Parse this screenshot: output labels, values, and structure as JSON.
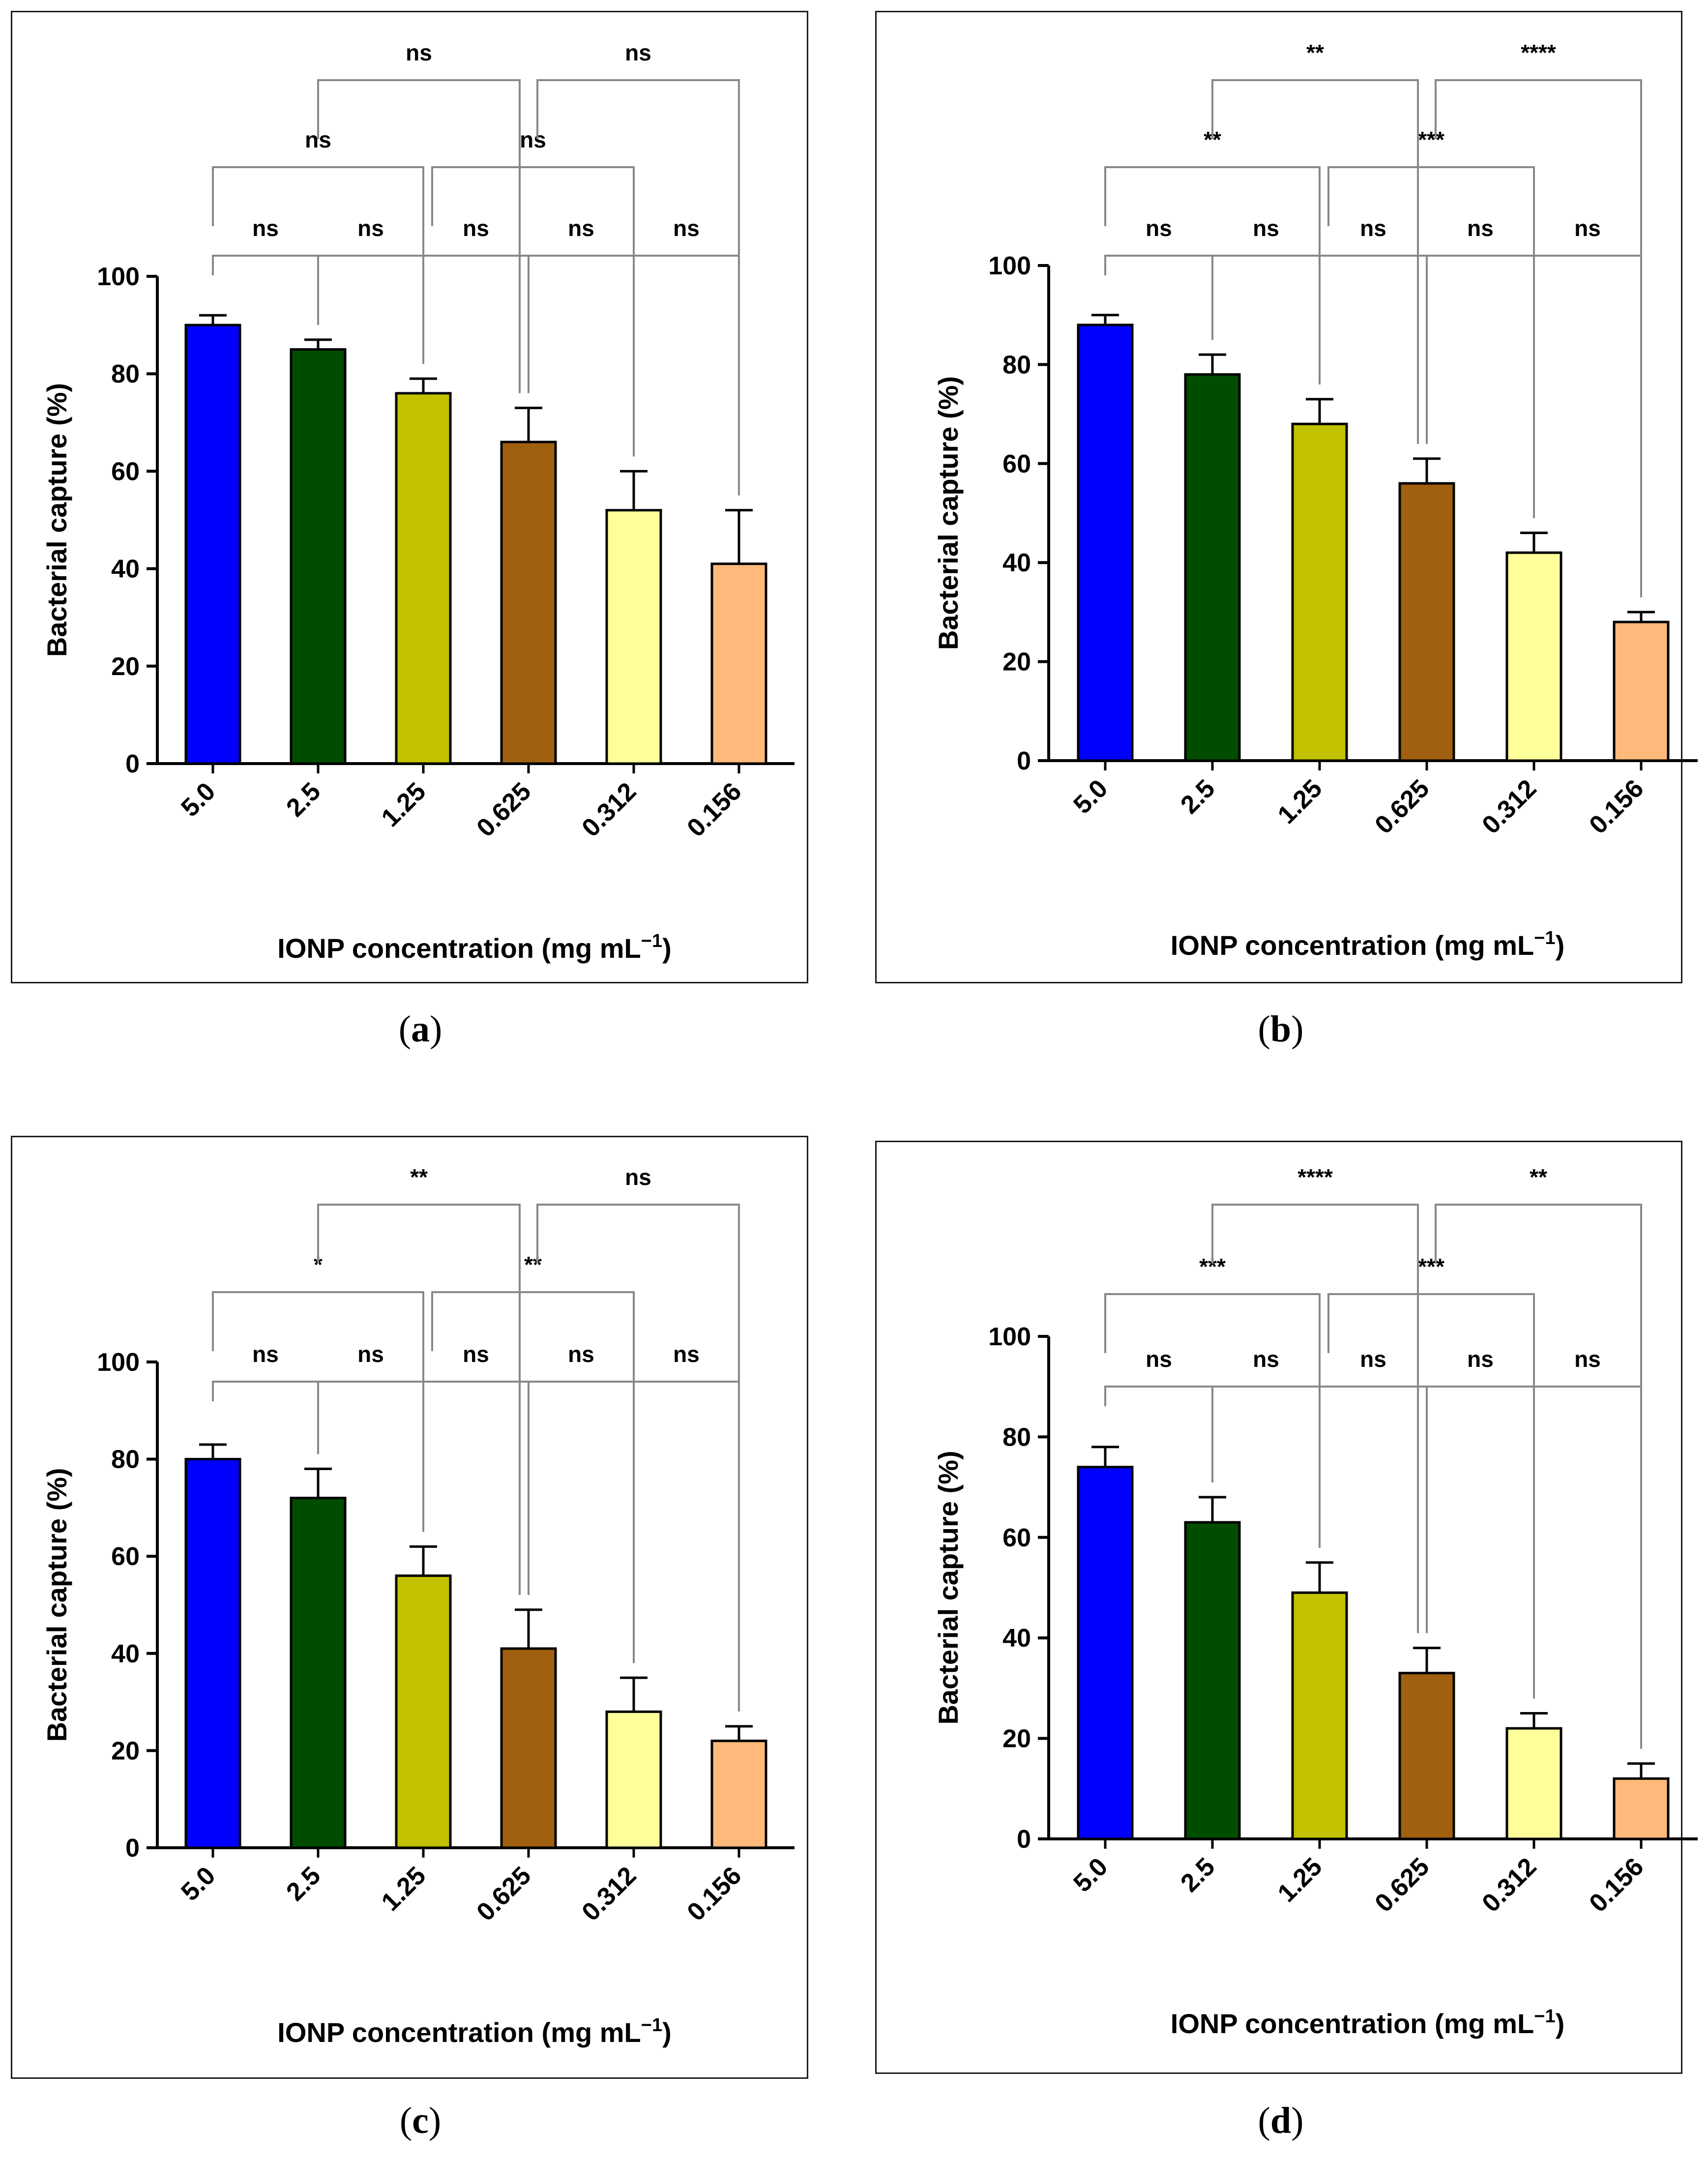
{
  "chart_data": [
    {
      "panel": "a",
      "type": "bar",
      "caption": "a",
      "categories": [
        "5.0",
        "2.5",
        "1.25",
        "0.625",
        "0.312",
        "0.156"
      ],
      "values": [
        90,
        85,
        76,
        66,
        52,
        41
      ],
      "errors": [
        2,
        2,
        3,
        7,
        8,
        11
      ],
      "colors": [
        "#0000ff",
        "#004d00",
        "#c2c200",
        "#a0600f",
        "#ffff99",
        "#ffb97a"
      ],
      "xlabel": "IONP concentration (mg mL",
      "xlabel_sup": "−1",
      "xlabel_close": ")",
      "ylabel": "Bacterial capture (%)",
      "ylim": [
        0,
        100
      ],
      "yticks": [
        0,
        20,
        40,
        60,
        80,
        100
      ],
      "comparisons": [
        {
          "from": 0,
          "to": 1,
          "label": "ns"
        },
        {
          "from": 1,
          "to": 2,
          "label": "ns"
        },
        {
          "from": 2,
          "to": 3,
          "label": "ns"
        },
        {
          "from": 3,
          "to": 4,
          "label": "ns"
        },
        {
          "from": 4,
          "to": 5,
          "label": "ns"
        },
        {
          "from": 0,
          "to": 2,
          "label": "ns"
        },
        {
          "from": 2,
          "to": 4,
          "label": "ns"
        },
        {
          "from": 1,
          "to": 3,
          "label": "ns"
        },
        {
          "from": 3,
          "to": 5,
          "label": "ns"
        }
      ]
    },
    {
      "panel": "b",
      "type": "bar",
      "caption": "b",
      "categories": [
        "5.0",
        "2.5",
        "1.25",
        "0.625",
        "0.312",
        "0.156"
      ],
      "values": [
        88,
        78,
        68,
        56,
        42,
        28
      ],
      "errors": [
        2,
        4,
        5,
        5,
        4,
        2
      ],
      "colors": [
        "#0000ff",
        "#004d00",
        "#c2c200",
        "#a0600f",
        "#ffff99",
        "#ffb97a"
      ],
      "xlabel": "IONP concentration (mg mL",
      "xlabel_sup": "−1",
      "xlabel_close": ")",
      "ylabel": "Bacterial capture (%)",
      "ylim": [
        0,
        100
      ],
      "yticks": [
        0,
        20,
        40,
        60,
        80,
        100
      ],
      "comparisons": [
        {
          "from": 0,
          "to": 1,
          "label": "ns"
        },
        {
          "from": 1,
          "to": 2,
          "label": "ns"
        },
        {
          "from": 2,
          "to": 3,
          "label": "ns"
        },
        {
          "from": 3,
          "to": 4,
          "label": "ns"
        },
        {
          "from": 4,
          "to": 5,
          "label": "ns"
        },
        {
          "from": 0,
          "to": 2,
          "label": "**"
        },
        {
          "from": 2,
          "to": 4,
          "label": "***"
        },
        {
          "from": 1,
          "to": 3,
          "label": "**"
        },
        {
          "from": 3,
          "to": 5,
          "label": "****"
        }
      ]
    },
    {
      "panel": "c",
      "type": "bar",
      "caption": "c",
      "categories": [
        "5.0",
        "2.5",
        "1.25",
        "0.625",
        "0.312",
        "0.156"
      ],
      "values": [
        80,
        72,
        56,
        41,
        28,
        22
      ],
      "errors": [
        3,
        6,
        6,
        8,
        7,
        3
      ],
      "colors": [
        "#0000ff",
        "#004d00",
        "#c2c200",
        "#a0600f",
        "#ffff99",
        "#ffb97a"
      ],
      "xlabel": "IONP concentration (mg mL",
      "xlabel_sup": "−1",
      "xlabel_close": ")",
      "ylabel": "Bacterial capture (%)",
      "ylim": [
        0,
        100
      ],
      "yticks": [
        0,
        20,
        40,
        60,
        80,
        100
      ],
      "comparisons": [
        {
          "from": 0,
          "to": 1,
          "label": "ns"
        },
        {
          "from": 1,
          "to": 2,
          "label": "ns"
        },
        {
          "from": 2,
          "to": 3,
          "label": "ns"
        },
        {
          "from": 3,
          "to": 4,
          "label": "ns"
        },
        {
          "from": 4,
          "to": 5,
          "label": "ns"
        },
        {
          "from": 0,
          "to": 2,
          "label": "*"
        },
        {
          "from": 2,
          "to": 4,
          "label": "**"
        },
        {
          "from": 1,
          "to": 3,
          "label": "**"
        },
        {
          "from": 3,
          "to": 5,
          "label": "ns"
        }
      ]
    },
    {
      "panel": "d",
      "type": "bar",
      "caption": "d",
      "categories": [
        "5.0",
        "2.5",
        "1.25",
        "0.625",
        "0.312",
        "0.156"
      ],
      "values": [
        74,
        63,
        49,
        33,
        22,
        12
      ],
      "errors": [
        4,
        5,
        6,
        5,
        3,
        3
      ],
      "colors": [
        "#0000ff",
        "#004d00",
        "#c2c200",
        "#a0600f",
        "#ffff99",
        "#ffb97a"
      ],
      "xlabel": "IONP concentration (mg mL",
      "xlabel_sup": "−1",
      "xlabel_close": ")",
      "ylabel": "Bacterial capture (%)",
      "ylim": [
        0,
        100
      ],
      "yticks": [
        0,
        20,
        40,
        60,
        80,
        100
      ],
      "comparisons": [
        {
          "from": 0,
          "to": 1,
          "label": "ns"
        },
        {
          "from": 1,
          "to": 2,
          "label": "ns"
        },
        {
          "from": 2,
          "to": 3,
          "label": "ns"
        },
        {
          "from": 3,
          "to": 4,
          "label": "ns"
        },
        {
          "from": 4,
          "to": 5,
          "label": "ns"
        },
        {
          "from": 0,
          "to": 2,
          "label": "***"
        },
        {
          "from": 2,
          "to": 4,
          "label": "***"
        },
        {
          "from": 1,
          "to": 3,
          "label": "****"
        },
        {
          "from": 3,
          "to": 5,
          "label": "**"
        }
      ]
    }
  ]
}
